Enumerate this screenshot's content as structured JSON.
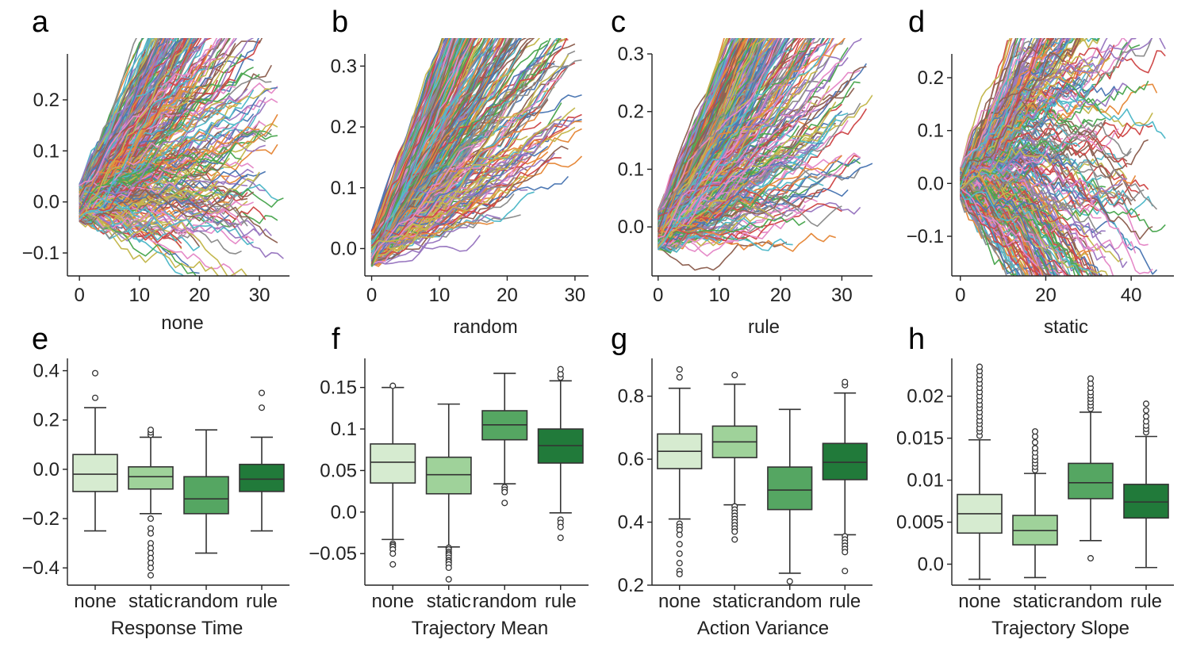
{
  "panel_letters": [
    "a",
    "b",
    "c",
    "d",
    "e",
    "f",
    "g",
    "h"
  ],
  "chart_data": [
    {
      "panel": "a",
      "type": "line",
      "xlabel": "none",
      "ylabel": "",
      "xlim": [
        -2,
        35
      ],
      "ylim": [
        -0.145,
        0.29
      ],
      "xticks": [
        0,
        10,
        20,
        30
      ],
      "yticks": [
        -0.1,
        0.0,
        0.1,
        0.2
      ],
      "n_series": 400,
      "length_range": [
        8,
        34
      ],
      "start_range": [
        -0.04,
        0.035
      ],
      "slope_range": [
        -0.004,
        0.025
      ],
      "noise": 0.016
    },
    {
      "panel": "b",
      "type": "line",
      "xlabel": "random",
      "ylabel": "",
      "xlim": [
        -1,
        32
      ],
      "ylim": [
        -0.045,
        0.32
      ],
      "xticks": [
        0,
        10,
        20,
        30
      ],
      "yticks": [
        0.0,
        0.1,
        0.2,
        0.3
      ],
      "n_series": 400,
      "length_range": [
        10,
        31
      ],
      "start_range": [
        -0.03,
        0.03
      ],
      "slope_range": [
        0.004,
        0.03
      ],
      "noise": 0.012
    },
    {
      "panel": "c",
      "type": "line",
      "xlabel": "rule",
      "ylabel": "",
      "xlim": [
        -1,
        35
      ],
      "ylim": [
        -0.085,
        0.3
      ],
      "xticks": [
        0,
        10,
        20,
        30
      ],
      "yticks": [
        0.0,
        0.1,
        0.2,
        0.3
      ],
      "n_series": 400,
      "length_range": [
        10,
        35
      ],
      "start_range": [
        -0.04,
        0.03
      ],
      "slope_range": [
        0.001,
        0.025
      ],
      "noise": 0.013
    },
    {
      "panel": "d",
      "type": "line",
      "xlabel": "static",
      "ylabel": "",
      "xlim": [
        -2,
        50
      ],
      "ylim": [
        -0.175,
        0.245
      ],
      "xticks": [
        0,
        20,
        40
      ],
      "yticks": [
        -0.1,
        0.0,
        0.1,
        0.2
      ],
      "n_series": 400,
      "length_range": [
        8,
        49
      ],
      "start_range": [
        -0.03,
        0.03
      ],
      "slope_range": [
        -0.01,
        0.018
      ],
      "noise": 0.017
    },
    {
      "panel": "e",
      "type": "box",
      "xlabel": "Response Time",
      "ylabel": "",
      "categories": [
        "none",
        "static",
        "random",
        "rule"
      ],
      "ylim": [
        -0.47,
        0.45
      ],
      "yticks": [
        -0.4,
        -0.2,
        0.0,
        0.2,
        0.4
      ],
      "boxes": [
        {
          "q1": -0.09,
          "median": -0.02,
          "q3": 0.06,
          "whislo": -0.25,
          "whishi": 0.25,
          "fliers": [
            0.29,
            0.39
          ]
        },
        {
          "q1": -0.08,
          "median": -0.03,
          "q3": 0.01,
          "whislo": -0.18,
          "whishi": 0.13,
          "fliers": [
            0.14,
            0.15,
            0.16,
            -0.2,
            -0.24,
            -0.26,
            -0.3,
            -0.32,
            -0.34,
            -0.36,
            -0.38,
            -0.4,
            -0.43
          ]
        },
        {
          "q1": -0.18,
          "median": -0.12,
          "q3": -0.03,
          "whislo": -0.34,
          "whishi": 0.16,
          "fliers": []
        },
        {
          "q1": -0.09,
          "median": -0.04,
          "q3": 0.02,
          "whislo": -0.25,
          "whishi": 0.13,
          "fliers": [
            0.25,
            0.31
          ]
        }
      ]
    },
    {
      "panel": "f",
      "type": "box",
      "xlabel": "Trajectory Mean",
      "ylabel": "",
      "categories": [
        "none",
        "static",
        "random",
        "rule"
      ],
      "ylim": [
        -0.088,
        0.185
      ],
      "yticks": [
        -0.05,
        0.0,
        0.05,
        0.1,
        0.15
      ],
      "boxes": [
        {
          "q1": 0.035,
          "median": 0.06,
          "q3": 0.082,
          "whislo": -0.033,
          "whishi": 0.15,
          "fliers": [
            0.152,
            -0.038,
            -0.04,
            -0.042,
            -0.045,
            -0.05,
            -0.063
          ]
        },
        {
          "q1": 0.022,
          "median": 0.045,
          "q3": 0.066,
          "whislo": -0.042,
          "whishi": 0.13,
          "fliers": [
            -0.043,
            -0.045,
            -0.048,
            -0.05,
            -0.052,
            -0.055,
            -0.058,
            -0.06,
            -0.063,
            -0.067,
            -0.081
          ]
        },
        {
          "q1": 0.087,
          "median": 0.105,
          "q3": 0.122,
          "whislo": 0.034,
          "whishi": 0.167,
          "fliers": [
            0.03,
            0.027,
            0.024,
            0.011
          ]
        },
        {
          "q1": 0.059,
          "median": 0.08,
          "q3": 0.1,
          "whislo": -0.001,
          "whishi": 0.158,
          "fliers": [
            0.162,
            0.166,
            0.172,
            -0.009,
            -0.013,
            -0.018,
            -0.031
          ]
        }
      ]
    },
    {
      "panel": "g",
      "type": "box",
      "xlabel": "Action Variance",
      "ylabel": "",
      "categories": [
        "none",
        "static",
        "random",
        "rule"
      ],
      "ylim": [
        0.2,
        0.92
      ],
      "yticks": [
        0.2,
        0.4,
        0.6,
        0.8
      ],
      "boxes": [
        {
          "q1": 0.57,
          "median": 0.625,
          "q3": 0.68,
          "whislo": 0.41,
          "whishi": 0.825,
          "fliers": [
            0.86,
            0.885,
            0.395,
            0.385,
            0.375,
            0.36,
            0.33,
            0.3,
            0.27,
            0.245,
            0.235
          ]
        },
        {
          "q1": 0.605,
          "median": 0.655,
          "q3": 0.705,
          "whislo": 0.455,
          "whishi": 0.838,
          "fliers": [
            0.867,
            0.45,
            0.44,
            0.43,
            0.42,
            0.41,
            0.4,
            0.39,
            0.38,
            0.37,
            0.345
          ]
        },
        {
          "q1": 0.44,
          "median": 0.502,
          "q3": 0.575,
          "whislo": 0.238,
          "whishi": 0.758,
          "fliers": [
            0.212
          ]
        },
        {
          "q1": 0.535,
          "median": 0.59,
          "q3": 0.65,
          "whislo": 0.36,
          "whishi": 0.81,
          "fliers": [
            0.835,
            0.845,
            0.355,
            0.345,
            0.335,
            0.325,
            0.315,
            0.305,
            0.245
          ]
        }
      ]
    },
    {
      "panel": "h",
      "type": "box",
      "xlabel": "Trajectory Slope",
      "ylabel": "",
      "categories": [
        "none",
        "static",
        "random",
        "rule"
      ],
      "ylim": [
        -0.0025,
        0.0245
      ],
      "yticks": [
        0.0,
        0.005,
        0.01,
        0.015,
        0.02
      ],
      "boxes": [
        {
          "q1": 0.0037,
          "median": 0.006,
          "q3": 0.0083,
          "whislo": -0.0018,
          "whishi": 0.0148,
          "fliers": [
            0.0153,
            0.0158,
            0.0162,
            0.0167,
            0.0171,
            0.0176,
            0.0181,
            0.0186,
            0.019,
            0.0195,
            0.02,
            0.0205,
            0.021,
            0.0215,
            0.022,
            0.0225,
            0.023,
            0.0235
          ]
        },
        {
          "q1": 0.0023,
          "median": 0.004,
          "q3": 0.0058,
          "whislo": -0.0016,
          "whishi": 0.0108,
          "fliers": [
            0.0112,
            0.0116,
            0.012,
            0.0124,
            0.0128,
            0.0133,
            0.0138,
            0.0145,
            0.0152,
            0.0158
          ]
        },
        {
          "q1": 0.0078,
          "median": 0.0097,
          "q3": 0.012,
          "whislo": 0.0028,
          "whishi": 0.0181,
          "fliers": [
            0.0185,
            0.0189,
            0.0193,
            0.0197,
            0.0201,
            0.0205,
            0.021,
            0.0215,
            0.0221,
            0.0007
          ]
        },
        {
          "q1": 0.0055,
          "median": 0.0074,
          "q3": 0.0095,
          "whislo": -0.0004,
          "whishi": 0.0152,
          "fliers": [
            0.0157,
            0.0161,
            0.0165,
            0.017,
            0.0176,
            0.0183,
            0.0191
          ]
        }
      ]
    }
  ],
  "palette": {
    "line_colors": [
      "#4e79b4",
      "#e68a3c",
      "#4ea853",
      "#cf4a4a",
      "#9a79c1",
      "#8f6253",
      "#e58ac8",
      "#8c8c8c",
      "#c4b84f",
      "#52b9c9"
    ],
    "box_colors": [
      "#d6ebd0",
      "#9fd29a",
      "#55a662",
      "#217a3a"
    ]
  }
}
